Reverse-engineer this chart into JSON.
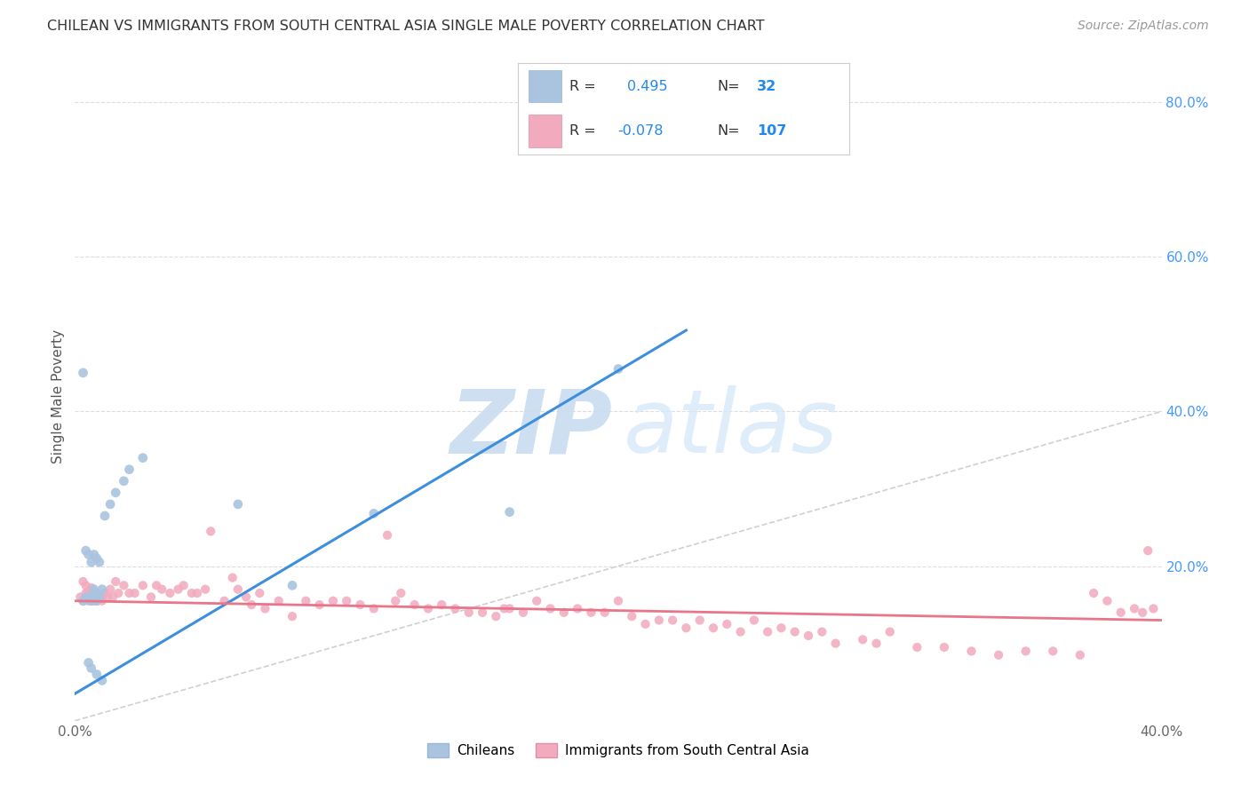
{
  "title": "CHILEAN VS IMMIGRANTS FROM SOUTH CENTRAL ASIA SINGLE MALE POVERTY CORRELATION CHART",
  "source": "Source: ZipAtlas.com",
  "ylabel": "Single Male Poverty",
  "xlim": [
    0.0,
    0.4
  ],
  "ylim": [
    0.0,
    0.84
  ],
  "yticks": [
    0.0,
    0.2,
    0.4,
    0.6,
    0.8
  ],
  "ytick_labels": [
    "",
    "20.0%",
    "40.0%",
    "60.0%",
    "80.0%"
  ],
  "chilean_R": 0.495,
  "chilean_N": 32,
  "immigrant_R": -0.078,
  "immigrant_N": 107,
  "chilean_color": "#aac4df",
  "immigrant_color": "#f2aabe",
  "chilean_line_color": "#3d8fdd",
  "immigrant_line_color": "#e8758a",
  "diagonal_color": "#c8c8c8",
  "background_color": "#ffffff",
  "legend_label_chilean": "Chileans",
  "legend_label_immigrant": "Immigrants from South Central Asia",
  "chilean_x": [
    0.003,
    0.004,
    0.005,
    0.006,
    0.007,
    0.007,
    0.008,
    0.008,
    0.009,
    0.01,
    0.011,
    0.013,
    0.015,
    0.018,
    0.02,
    0.025,
    0.004,
    0.005,
    0.006,
    0.007,
    0.008,
    0.009,
    0.003,
    0.005,
    0.006,
    0.008,
    0.01,
    0.06,
    0.08,
    0.11,
    0.16,
    0.2
  ],
  "chilean_y": [
    0.155,
    0.16,
    0.16,
    0.155,
    0.16,
    0.17,
    0.155,
    0.165,
    0.16,
    0.17,
    0.265,
    0.28,
    0.295,
    0.31,
    0.325,
    0.34,
    0.22,
    0.215,
    0.205,
    0.215,
    0.21,
    0.205,
    0.45,
    0.075,
    0.068,
    0.06,
    0.052,
    0.28,
    0.175,
    0.268,
    0.27,
    0.455
  ],
  "immigrant_x": [
    0.002,
    0.003,
    0.004,
    0.005,
    0.005,
    0.006,
    0.006,
    0.007,
    0.007,
    0.008,
    0.008,
    0.009,
    0.009,
    0.01,
    0.01,
    0.011,
    0.012,
    0.013,
    0.014,
    0.015,
    0.016,
    0.018,
    0.02,
    0.022,
    0.025,
    0.028,
    0.03,
    0.032,
    0.035,
    0.038,
    0.04,
    0.043,
    0.045,
    0.048,
    0.05,
    0.055,
    0.058,
    0.06,
    0.063,
    0.065,
    0.068,
    0.07,
    0.075,
    0.08,
    0.085,
    0.09,
    0.095,
    0.1,
    0.105,
    0.11,
    0.115,
    0.118,
    0.12,
    0.125,
    0.13,
    0.135,
    0.14,
    0.145,
    0.15,
    0.155,
    0.158,
    0.16,
    0.165,
    0.17,
    0.175,
    0.18,
    0.185,
    0.19,
    0.195,
    0.2,
    0.205,
    0.21,
    0.215,
    0.22,
    0.225,
    0.23,
    0.235,
    0.24,
    0.245,
    0.25,
    0.255,
    0.26,
    0.265,
    0.27,
    0.275,
    0.28,
    0.29,
    0.295,
    0.3,
    0.31,
    0.32,
    0.33,
    0.34,
    0.35,
    0.36,
    0.37,
    0.375,
    0.38,
    0.385,
    0.39,
    0.393,
    0.395,
    0.397,
    0.003,
    0.004,
    0.005,
    0.006
  ],
  "immigrant_y": [
    0.16,
    0.155,
    0.165,
    0.16,
    0.155,
    0.165,
    0.155,
    0.165,
    0.155,
    0.165,
    0.155,
    0.16,
    0.16,
    0.16,
    0.155,
    0.165,
    0.16,
    0.17,
    0.16,
    0.18,
    0.165,
    0.175,
    0.165,
    0.165,
    0.175,
    0.16,
    0.175,
    0.17,
    0.165,
    0.17,
    0.175,
    0.165,
    0.165,
    0.17,
    0.245,
    0.155,
    0.185,
    0.17,
    0.16,
    0.15,
    0.165,
    0.145,
    0.155,
    0.135,
    0.155,
    0.15,
    0.155,
    0.155,
    0.15,
    0.145,
    0.24,
    0.155,
    0.165,
    0.15,
    0.145,
    0.15,
    0.145,
    0.14,
    0.14,
    0.135,
    0.145,
    0.145,
    0.14,
    0.155,
    0.145,
    0.14,
    0.145,
    0.14,
    0.14,
    0.155,
    0.135,
    0.125,
    0.13,
    0.13,
    0.12,
    0.13,
    0.12,
    0.125,
    0.115,
    0.13,
    0.115,
    0.12,
    0.115,
    0.11,
    0.115,
    0.1,
    0.105,
    0.1,
    0.115,
    0.095,
    0.095,
    0.09,
    0.085,
    0.09,
    0.09,
    0.085,
    0.165,
    0.155,
    0.14,
    0.145,
    0.14,
    0.22,
    0.145,
    0.18,
    0.175,
    0.168,
    0.172
  ],
  "chilean_trend_x": [
    0.0,
    0.225
  ],
  "chilean_trend_y": [
    0.035,
    0.505
  ],
  "immigrant_trend_x": [
    0.0,
    0.4
  ],
  "immigrant_trend_y": [
    0.155,
    0.13
  ]
}
